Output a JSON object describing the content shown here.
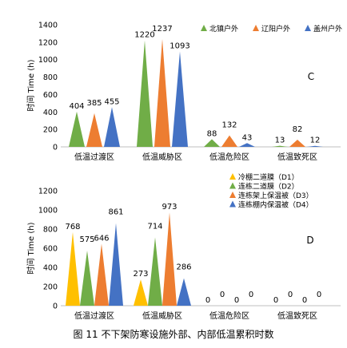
{
  "caption": "图 11 不下架防寒设施外部、内部低温累积时数",
  "chart_data": [
    {
      "type": "bar",
      "bar_shape": "triangle",
      "panel_label": "C",
      "ylabel": "时间 Time (h)",
      "ylim": [
        0,
        1400
      ],
      "yticks": [
        0,
        200,
        400,
        600,
        800,
        1000,
        1200,
        1400
      ],
      "categories": [
        "低温过渡区",
        "低温威胁区",
        "低温危险区",
        "低温致死区"
      ],
      "legend_position": "top-right",
      "series": [
        {
          "name": "北镇户外",
          "color": "#70ad47",
          "values": [
            404,
            1220,
            88,
            13
          ]
        },
        {
          "name": "辽阳户外",
          "color": "#ed7d31",
          "values": [
            385,
            1237,
            132,
            82
          ]
        },
        {
          "name": "盖州户外",
          "color": "#4472c4",
          "values": [
            455,
            1093,
            43,
            12
          ]
        }
      ]
    },
    {
      "type": "bar",
      "bar_shape": "triangle",
      "panel_label": "D",
      "ylabel": "时间 Time (h)",
      "ylim": [
        0,
        1200
      ],
      "yticks": [
        0,
        200,
        400,
        600,
        800,
        1000,
        1200
      ],
      "categories": [
        "低温过渡区",
        "低温威胁区",
        "低温危险区",
        "低温致死区"
      ],
      "legend_position": "top-right",
      "series": [
        {
          "name": "冷棚二道膜（D1）",
          "color": "#ffc000",
          "values": [
            768,
            273,
            0,
            0
          ]
        },
        {
          "name": "连栋二道膜（D2）",
          "color": "#70ad47",
          "values": [
            575,
            714,
            0,
            0
          ]
        },
        {
          "name": "连栋架上保温被（D3）",
          "color": "#ed7d31",
          "values": [
            646,
            973,
            0,
            0
          ]
        },
        {
          "name": "连栋棚内保温被（D4）",
          "color": "#4472c4",
          "values": [
            861,
            286,
            0,
            0
          ]
        }
      ]
    }
  ]
}
